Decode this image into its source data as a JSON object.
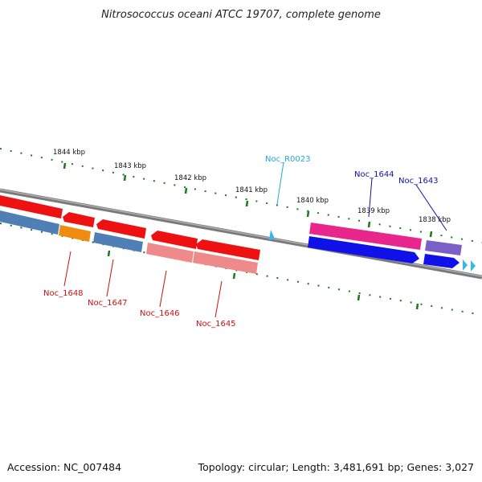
{
  "title": "Nitrosococcus oceani ATCC 19707, complete genome",
  "accession": "Accession: NC_007484",
  "topology": "Topology: circular; Length: 3,481,691 bp; Genes: 3,027",
  "kbp_labels": [
    "1844 kbp",
    "1843 kbp",
    "1842 kbp",
    "1841 kbp",
    "1840 kbp",
    "1839 kbp",
    "1838 kbp"
  ],
  "gene_labels": {
    "noc_r0023": "Noc_R0023",
    "noc_1644": "Noc_1644",
    "noc_1643": "Noc_1643",
    "noc_1648": "Noc_1648",
    "noc_1647": "Noc_1647",
    "noc_1646": "Noc_1646",
    "noc_1645": "Noc_1645"
  },
  "colors": {
    "backbone": "#7a7a7a",
    "forward_red": "#ee1111",
    "reverse_blue": "#4f7fb5",
    "orange": "#ee8c10",
    "pink_light": "#ef8a8a",
    "magenta": "#e8268c",
    "royal_blue": "#1010e8",
    "purple": "#7a5fc8",
    "cyan": "#36b8e8",
    "tick_green": "#1a7a1a",
    "label_red": "#cc1111",
    "label_blue": "#1111aa",
    "label_cyan": "#22aadd"
  }
}
